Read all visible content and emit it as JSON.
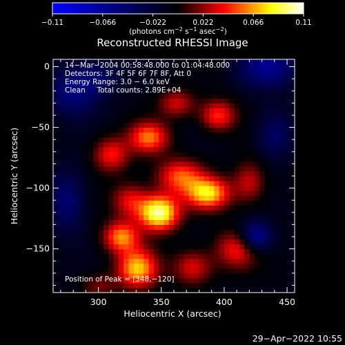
{
  "colorbar": {
    "ticks": [
      "−0.11",
      "−0.066",
      "−0.022",
      "0.022",
      "0.066",
      "0.11"
    ],
    "tick_values": [
      -0.11,
      -0.066,
      -0.022,
      0.022,
      0.066,
      0.11
    ],
    "range": [
      -0.11,
      0.11
    ],
    "units_prefix": "(photons cm",
    "units_exp1": "−2",
    "units_mid1": " s",
    "units_exp2": "−1",
    "units_mid2": " asec",
    "units_exp3": "−2",
    "units_suffix": ")"
  },
  "chart_data": {
    "type": "heatmap",
    "title": "Reconstructed RHESSI Image",
    "xlabel": "Heliocentric X (arcsec)",
    "ylabel": "Heliocentric Y (arcsec)",
    "xlim": [
      264,
      456
    ],
    "ylim": [
      -186,
      6
    ],
    "x_ticks": [
      300,
      350,
      400,
      450
    ],
    "y_ticks": [
      0,
      -50,
      -100,
      -150
    ],
    "x_tick_labels": [
      "300",
      "350",
      "400",
      "450"
    ],
    "y_tick_labels": [
      "0",
      "−50",
      "−100",
      "−150"
    ],
    "colormap": [
      "#0000ff",
      "#000000",
      "#ff0000",
      "#ffff00",
      "#ffffff"
    ],
    "value_range": [
      -0.11,
      0.11
    ],
    "peak": [
      348,
      -120
    ],
    "sources": [
      {
        "x": 348,
        "y": -120,
        "amp": 0.11,
        "sx": 11,
        "sy": 10
      },
      {
        "x": 387,
        "y": -104,
        "amp": 0.085,
        "sx": 12,
        "sy": 9
      },
      {
        "x": 331,
        "y": -166,
        "amp": 0.08,
        "sx": 11,
        "sy": 11
      },
      {
        "x": 318,
        "y": -140,
        "amp": 0.07,
        "sx": 10,
        "sy": 9
      },
      {
        "x": 365,
        "y": -90,
        "amp": 0.06,
        "sx": 13,
        "sy": 10
      },
      {
        "x": 340,
        "y": -58,
        "amp": 0.065,
        "sx": 11,
        "sy": 9
      },
      {
        "x": 395,
        "y": -40,
        "amp": 0.055,
        "sx": 10,
        "sy": 9
      },
      {
        "x": 310,
        "y": -72,
        "amp": 0.05,
        "sx": 10,
        "sy": 10
      },
      {
        "x": 362,
        "y": -30,
        "amp": 0.04,
        "sx": 10,
        "sy": 8
      },
      {
        "x": 420,
        "y": -95,
        "amp": 0.04,
        "sx": 9,
        "sy": 12
      },
      {
        "x": 410,
        "y": -150,
        "amp": 0.05,
        "sx": 12,
        "sy": 11
      },
      {
        "x": 375,
        "y": -165,
        "amp": 0.045,
        "sx": 11,
        "sy": 10
      },
      {
        "x": 325,
        "y": -110,
        "amp": 0.045,
        "sx": 10,
        "sy": 10
      },
      {
        "x": 300,
        "y": -180,
        "amp": 0.025,
        "sx": 10,
        "sy": 8
      },
      {
        "x": 280,
        "y": -20,
        "amp": -0.045,
        "sx": 14,
        "sy": 14
      },
      {
        "x": 435,
        "y": 0,
        "amp": -0.05,
        "sx": 16,
        "sy": 12
      },
      {
        "x": 425,
        "y": -140,
        "amp": -0.06,
        "sx": 9,
        "sy": 9
      },
      {
        "x": 440,
        "y": -55,
        "amp": -0.035,
        "sx": 10,
        "sy": 14
      },
      {
        "x": 275,
        "y": -110,
        "amp": -0.04,
        "sx": 10,
        "sy": 18
      },
      {
        "x": 300,
        "y": -8,
        "amp": -0.03,
        "sx": 12,
        "sy": 10
      }
    ]
  },
  "info": {
    "line1": "14−Mar−2004 00:58:48.000 to 01:04:48.000",
    "line2": "Detectors: 3F 4F 5F 6F 7F 8F, Att 0",
    "line3": "Energy Range: 3.0 − 6.0 keV",
    "line4": "Clean     Total counts: 2.89E+04",
    "peak_label": "Position of Peak = [348,−120]"
  },
  "footer": {
    "date": "29−Apr−2022 10:55"
  }
}
